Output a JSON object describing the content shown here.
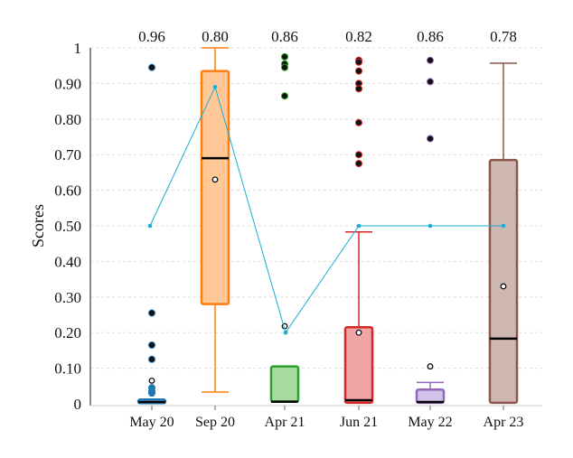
{
  "chart_data": {
    "type": "box",
    "title": "",
    "xlabel": "",
    "ylabel": "Scores",
    "ylim": [
      0,
      1
    ],
    "yticks": [
      "0",
      "0.10",
      "0.20",
      "0.30",
      "0.40",
      "0.50",
      "0.60",
      "0.70",
      "0.80",
      "0.90",
      "1"
    ],
    "grid": "horizontal dashed",
    "categories": [
      "May 20",
      "Sep 20",
      "Apr 21",
      "Jun 21",
      "May 22",
      "Apr 23"
    ],
    "top_labels": [
      "0.96",
      "0.80",
      "0.86",
      "0.82",
      "0.86",
      "0.78"
    ],
    "colors": [
      "#1f77b4",
      "#ff7f0e",
      "#2ca02c",
      "#d62728",
      "#9467bd",
      "#8c564b"
    ],
    "fills": [
      "#aec7e8",
      "#ffc896",
      "#a8dba0",
      "#f2a5a5",
      "#d2c2ea",
      "#d0b8b2"
    ],
    "line_color": "#1aaed6",
    "boxes": [
      {
        "whislo": 0.0,
        "q1": 0.002,
        "med": 0.005,
        "q3": 0.012,
        "whishi": 0.015,
        "mean": 0.065,
        "fliers": [
          0.945,
          0.255,
          0.165,
          0.125,
          0.045,
          0.035,
          0.03
        ]
      },
      {
        "whislo": 0.033,
        "q1": 0.28,
        "med": 0.69,
        "q3": 0.935,
        "whishi": 1.0,
        "mean": 0.63,
        "fliers": []
      },
      {
        "whislo": 0.003,
        "q1": 0.006,
        "med": 0.006,
        "q3": 0.105,
        "whishi": 0.105,
        "mean": 0.218,
        "fliers": [
          0.975,
          0.955,
          0.945,
          0.865
        ]
      },
      {
        "whislo": 0.003,
        "q1": 0.003,
        "med": 0.01,
        "q3": 0.215,
        "whishi": 0.483,
        "mean": 0.2,
        "fliers": [
          0.965,
          0.96,
          0.935,
          0.9,
          0.885,
          0.79,
          0.7,
          0.675
        ]
      },
      {
        "whislo": 0.003,
        "q1": 0.003,
        "med": 0.005,
        "q3": 0.04,
        "whishi": 0.06,
        "mean": 0.105,
        "fliers": [
          0.965,
          0.905,
          0.745
        ]
      },
      {
        "whislo": 0.003,
        "q1": 0.003,
        "med": 0.183,
        "q3": 0.685,
        "whishi": 0.957,
        "mean": 0.33,
        "fliers": []
      }
    ],
    "line_values": [
      0.5,
      0.89,
      0.2,
      0.5,
      0.5,
      0.5
    ]
  }
}
